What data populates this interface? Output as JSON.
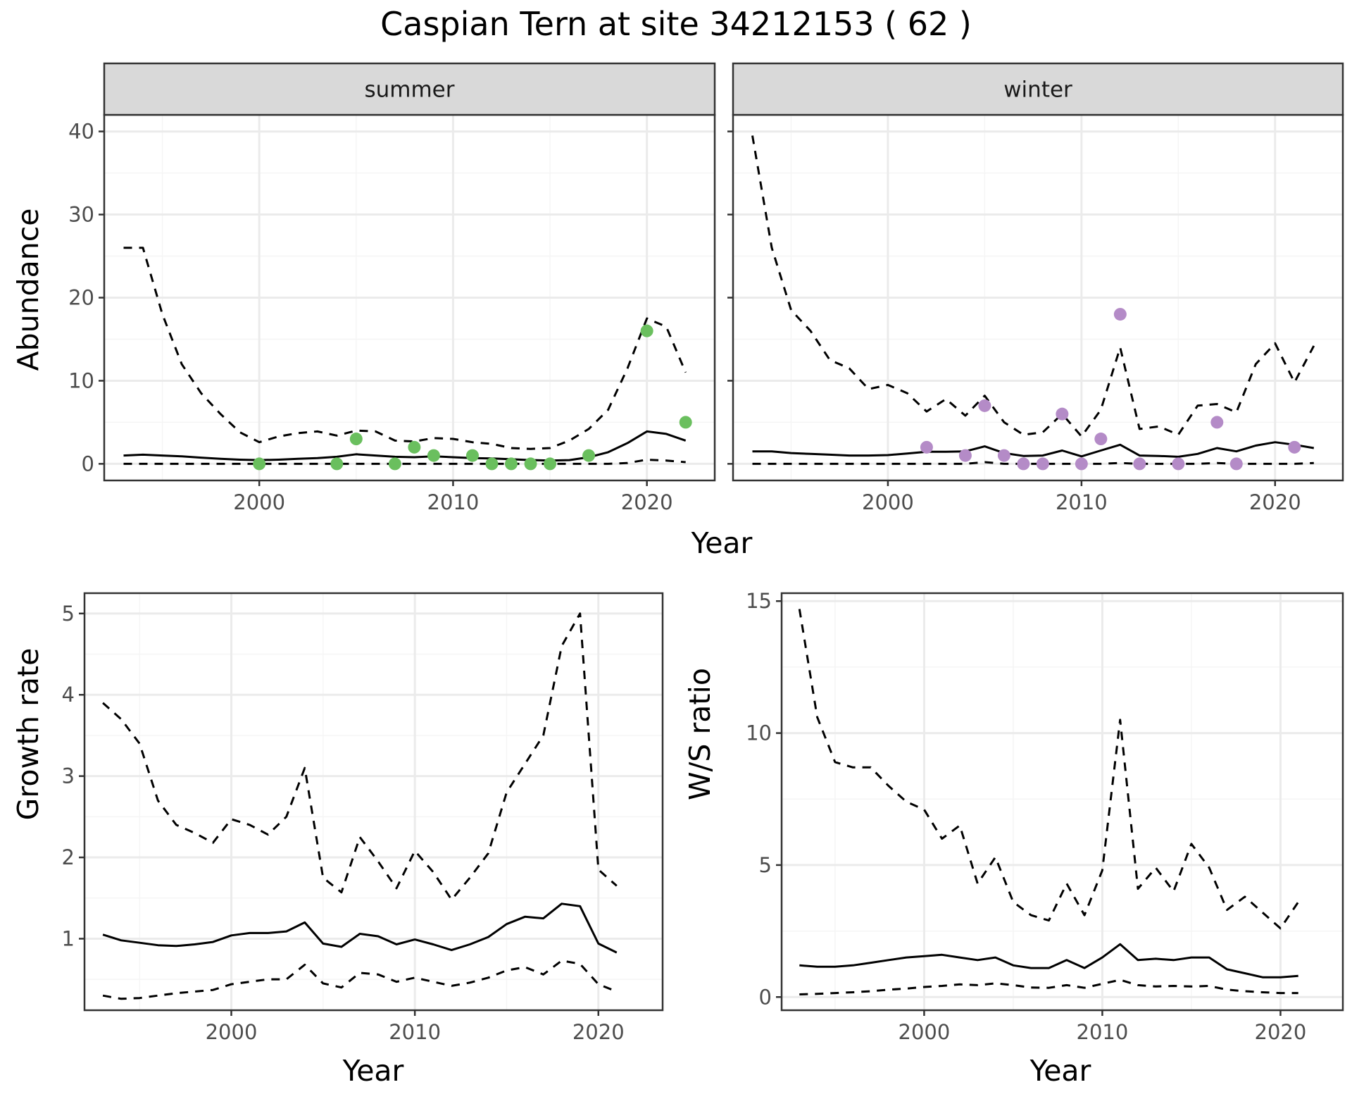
{
  "title": "Caspian Tern at site 34212153 ( 62 )",
  "colors": {
    "summer_points": "#6abf5e",
    "winter_points": "#b48bc7",
    "line": "#000000",
    "grid_major": "#ebebeb",
    "grid_minor": "#f5f5f5",
    "strip_fill": "#d9d9d9",
    "panel_border": "#333333"
  },
  "chart_data": [
    {
      "type": "line",
      "panel": "summer",
      "strip_label": "summer",
      "xlabel": "Year",
      "ylabel": "Abundance",
      "xlim": [
        1992,
        2023.5
      ],
      "ylim": [
        -2,
        42
      ],
      "xticks": [
        2000,
        2010,
        2020
      ],
      "yticks": [
        0,
        10,
        20,
        30,
        40
      ],
      "grid": true,
      "series": [
        {
          "role": "estimate",
          "style": "solid",
          "x": [
            1993,
            1994,
            1995,
            1996,
            1997,
            1998,
            1999,
            2000,
            2001,
            2002,
            2003,
            2004,
            2005,
            2006,
            2007,
            2008,
            2009,
            2010,
            2011,
            2012,
            2013,
            2014,
            2015,
            2016,
            2017,
            2018,
            2019,
            2020,
            2021,
            2022
          ],
          "y": [
            1.0,
            1.1,
            1.0,
            0.9,
            0.75,
            0.6,
            0.5,
            0.45,
            0.5,
            0.6,
            0.7,
            0.85,
            1.15,
            1.0,
            0.85,
            0.8,
            0.9,
            0.8,
            0.7,
            0.65,
            0.55,
            0.45,
            0.4,
            0.45,
            0.8,
            1.4,
            2.5,
            3.9,
            3.6,
            2.8
          ]
        },
        {
          "role": "upper",
          "style": "dashed",
          "x": [
            1993,
            1994,
            1995,
            1996,
            1997,
            1998,
            1999,
            2000,
            2001,
            2002,
            2003,
            2004,
            2005,
            2006,
            2007,
            2008,
            2009,
            2010,
            2011,
            2012,
            2013,
            2014,
            2015,
            2016,
            2017,
            2018,
            2019,
            2020,
            2021,
            2022
          ],
          "y": [
            26.0,
            26.0,
            18.0,
            12.0,
            8.5,
            6.0,
            3.8,
            2.6,
            3.3,
            3.7,
            3.9,
            3.4,
            4.0,
            3.9,
            2.8,
            2.7,
            3.1,
            3.0,
            2.6,
            2.4,
            1.9,
            1.8,
            1.9,
            2.8,
            4.2,
            6.5,
            11.5,
            17.5,
            16.5,
            11.0
          ]
        },
        {
          "role": "lower",
          "style": "dashed",
          "x": [
            1993,
            1994,
            1995,
            1996,
            1997,
            1998,
            1999,
            2000,
            2001,
            2002,
            2003,
            2004,
            2005,
            2006,
            2007,
            2008,
            2009,
            2010,
            2011,
            2012,
            2013,
            2014,
            2015,
            2016,
            2017,
            2018,
            2019,
            2020,
            2021,
            2022
          ],
          "y": [
            0.0,
            0.0,
            0.0,
            0.0,
            0.0,
            0.0,
            0.0,
            0.0,
            0.0,
            0.0,
            0.0,
            0.0,
            0.0,
            0.0,
            0.0,
            0.0,
            0.0,
            0.0,
            0.0,
            0.0,
            0.0,
            0.0,
            0.0,
            0.0,
            0.0,
            0.0,
            0.1,
            0.5,
            0.4,
            0.2
          ]
        }
      ],
      "points": {
        "x": [
          2000,
          2004,
          2005,
          2007,
          2008,
          2009,
          2011,
          2012,
          2013,
          2014,
          2015,
          2017,
          2020,
          2022
        ],
        "y": [
          0,
          0,
          3,
          0,
          2,
          1,
          1,
          0,
          0,
          0,
          0,
          1,
          16,
          5
        ]
      }
    },
    {
      "type": "line",
      "panel": "winter",
      "strip_label": "winter",
      "xlabel": "Year",
      "xlim": [
        1992,
        2023.5
      ],
      "ylim": [
        -2,
        42
      ],
      "xticks": [
        2000,
        2010,
        2020
      ],
      "yticks": [
        0,
        10,
        20,
        30,
        40
      ],
      "grid": true,
      "series": [
        {
          "role": "estimate",
          "style": "solid",
          "x": [
            1993,
            1994,
            1995,
            1996,
            1997,
            1998,
            1999,
            2000,
            2001,
            2002,
            2003,
            2004,
            2005,
            2006,
            2007,
            2008,
            2009,
            2010,
            2011,
            2012,
            2013,
            2014,
            2015,
            2016,
            2017,
            2018,
            2019,
            2020,
            2021,
            2022
          ],
          "y": [
            1.5,
            1.5,
            1.3,
            1.2,
            1.1,
            1.0,
            1.0,
            1.05,
            1.25,
            1.45,
            1.45,
            1.5,
            2.1,
            1.3,
            0.95,
            1.0,
            1.6,
            0.9,
            1.6,
            2.3,
            1.0,
            0.95,
            0.85,
            1.2,
            1.9,
            1.5,
            2.2,
            2.6,
            2.3,
            1.9
          ]
        },
        {
          "role": "upper",
          "style": "dashed",
          "x": [
            1993,
            1994,
            1995,
            1996,
            1997,
            1998,
            1999,
            2000,
            2001,
            2002,
            2003,
            2004,
            2005,
            2006,
            2007,
            2008,
            2009,
            2010,
            2011,
            2012,
            2013,
            2014,
            2015,
            2016,
            2017,
            2018,
            2019,
            2020,
            2021,
            2022
          ],
          "y": [
            39.5,
            26.0,
            18.5,
            16.0,
            12.5,
            11.5,
            9.0,
            9.5,
            8.5,
            6.3,
            7.8,
            5.8,
            8.2,
            5.0,
            3.5,
            3.8,
            6.0,
            3.3,
            6.5,
            14.0,
            4.2,
            4.5,
            3.5,
            7.0,
            7.2,
            6.2,
            12.0,
            14.5,
            9.8,
            14.2
          ]
        },
        {
          "role": "lower",
          "style": "dashed",
          "x": [
            1993,
            1994,
            1995,
            1996,
            1997,
            1998,
            1999,
            2000,
            2001,
            2002,
            2003,
            2004,
            2005,
            2006,
            2007,
            2008,
            2009,
            2010,
            2011,
            2012,
            2013,
            2014,
            2015,
            2016,
            2017,
            2018,
            2019,
            2020,
            2021,
            2022
          ],
          "y": [
            0.0,
            0.0,
            0.0,
            0.0,
            0.0,
            0.0,
            0.0,
            0.0,
            0.0,
            0.0,
            0.0,
            0.0,
            0.2,
            0.0,
            0.0,
            0.0,
            0.0,
            0.0,
            0.0,
            0.1,
            0.0,
            0.0,
            0.0,
            0.0,
            0.1,
            0.0,
            0.0,
            0.0,
            0.0,
            0.1
          ]
        }
      ],
      "points": {
        "x": [
          2002,
          2004,
          2005,
          2006,
          2007,
          2008,
          2009,
          2010,
          2011,
          2012,
          2013,
          2015,
          2017,
          2018,
          2021
        ],
        "y": [
          2,
          1,
          7,
          1,
          0,
          0,
          6,
          0,
          3,
          18,
          0,
          0,
          5,
          0,
          2
        ]
      }
    },
    {
      "type": "line",
      "panel": "growth",
      "xlabel": "Year",
      "ylabel": "Growth rate",
      "xlim": [
        1992,
        2023.5
      ],
      "ylim": [
        0.12,
        5.25
      ],
      "xticks": [
        2000,
        2010,
        2020
      ],
      "yticks": [
        1,
        2,
        3,
        4,
        5
      ],
      "grid": true,
      "series": [
        {
          "role": "estimate",
          "style": "solid",
          "x": [
            1993,
            1994,
            1995,
            1996,
            1997,
            1998,
            1999,
            2000,
            2001,
            2002,
            2003,
            2004,
            2005,
            2006,
            2007,
            2008,
            2009,
            2010,
            2011,
            2012,
            2013,
            2014,
            2015,
            2016,
            2017,
            2018,
            2019,
            2020,
            2021
          ],
          "y": [
            1.05,
            0.98,
            0.95,
            0.92,
            0.91,
            0.93,
            0.96,
            1.04,
            1.07,
            1.07,
            1.09,
            1.2,
            0.94,
            0.9,
            1.06,
            1.03,
            0.93,
            0.99,
            0.93,
            0.86,
            0.93,
            1.02,
            1.18,
            1.27,
            1.25,
            1.43,
            1.4,
            0.94,
            0.83
          ]
        },
        {
          "role": "upper",
          "style": "dashed",
          "x": [
            1993,
            1994,
            1995,
            1996,
            1997,
            1998,
            1999,
            2000,
            2001,
            2002,
            2003,
            2004,
            2005,
            2006,
            2007,
            2008,
            2009,
            2010,
            2011,
            2012,
            2013,
            2014,
            2015,
            2016,
            2017,
            2018,
            2019,
            2020,
            2021
          ],
          "y": [
            3.9,
            3.7,
            3.4,
            2.7,
            2.4,
            2.3,
            2.18,
            2.47,
            2.4,
            2.28,
            2.5,
            3.1,
            1.75,
            1.57,
            2.25,
            1.95,
            1.62,
            2.08,
            1.82,
            1.48,
            1.75,
            2.05,
            2.8,
            3.15,
            3.5,
            4.6,
            5.0,
            1.85,
            1.65
          ]
        },
        {
          "role": "lower",
          "style": "dashed",
          "x": [
            1993,
            1994,
            1995,
            1996,
            1997,
            1998,
            1999,
            2000,
            2001,
            2002,
            2003,
            2004,
            2005,
            2006,
            2007,
            2008,
            2009,
            2010,
            2011,
            2012,
            2013,
            2014,
            2015,
            2016,
            2017,
            2018,
            2019,
            2020,
            2021
          ],
          "y": [
            0.3,
            0.26,
            0.27,
            0.3,
            0.33,
            0.35,
            0.37,
            0.44,
            0.47,
            0.5,
            0.5,
            0.68,
            0.45,
            0.4,
            0.58,
            0.56,
            0.47,
            0.52,
            0.47,
            0.42,
            0.46,
            0.52,
            0.61,
            0.65,
            0.56,
            0.73,
            0.69,
            0.44,
            0.35
          ]
        }
      ]
    },
    {
      "type": "line",
      "panel": "ws_ratio",
      "xlabel": "Year",
      "ylabel": "W/S ratio",
      "xlim": [
        1992,
        2023.5
      ],
      "ylim": [
        -0.5,
        15.3
      ],
      "xticks": [
        2000,
        2010,
        2020
      ],
      "yticks": [
        0,
        5,
        10,
        15
      ],
      "grid": true,
      "series": [
        {
          "role": "estimate",
          "style": "solid",
          "x": [
            1993,
            1994,
            1995,
            1996,
            1997,
            1998,
            1999,
            2000,
            2001,
            2002,
            2003,
            2004,
            2005,
            2006,
            2007,
            2008,
            2009,
            2010,
            2011,
            2012,
            2013,
            2014,
            2015,
            2016,
            2017,
            2018,
            2019,
            2020,
            2021
          ],
          "y": [
            1.2,
            1.15,
            1.15,
            1.2,
            1.3,
            1.4,
            1.5,
            1.55,
            1.6,
            1.5,
            1.4,
            1.5,
            1.2,
            1.1,
            1.1,
            1.4,
            1.1,
            1.5,
            2.0,
            1.4,
            1.45,
            1.4,
            1.5,
            1.5,
            1.05,
            0.9,
            0.75,
            0.75,
            0.8
          ]
        },
        {
          "role": "upper",
          "style": "dashed",
          "x": [
            1993,
            1994,
            1995,
            1996,
            1997,
            1998,
            1999,
            2000,
            2001,
            2002,
            2003,
            2004,
            2005,
            2006,
            2007,
            2008,
            2009,
            2010,
            2011,
            2012,
            2013,
            2014,
            2015,
            2016,
            2017,
            2018,
            2019,
            2020,
            2021
          ],
          "y": [
            14.7,
            10.6,
            8.9,
            8.7,
            8.7,
            8.0,
            7.4,
            7.1,
            6.0,
            6.5,
            4.3,
            5.3,
            3.6,
            3.1,
            2.9,
            4.3,
            3.1,
            4.8,
            10.5,
            4.1,
            4.9,
            4.0,
            5.8,
            4.9,
            3.3,
            3.8,
            3.2,
            2.6,
            3.6
          ]
        },
        {
          "role": "lower",
          "style": "dashed",
          "x": [
            1993,
            1994,
            1995,
            1996,
            1997,
            1998,
            1999,
            2000,
            2001,
            2002,
            2003,
            2004,
            2005,
            2006,
            2007,
            2008,
            2009,
            2010,
            2011,
            2012,
            2013,
            2014,
            2015,
            2016,
            2017,
            2018,
            2019,
            2020,
            2021
          ],
          "y": [
            0.1,
            0.12,
            0.15,
            0.18,
            0.22,
            0.28,
            0.32,
            0.38,
            0.42,
            0.48,
            0.45,
            0.52,
            0.45,
            0.36,
            0.35,
            0.45,
            0.35,
            0.5,
            0.65,
            0.45,
            0.4,
            0.42,
            0.4,
            0.42,
            0.28,
            0.22,
            0.18,
            0.15,
            0.15
          ]
        }
      ]
    }
  ]
}
